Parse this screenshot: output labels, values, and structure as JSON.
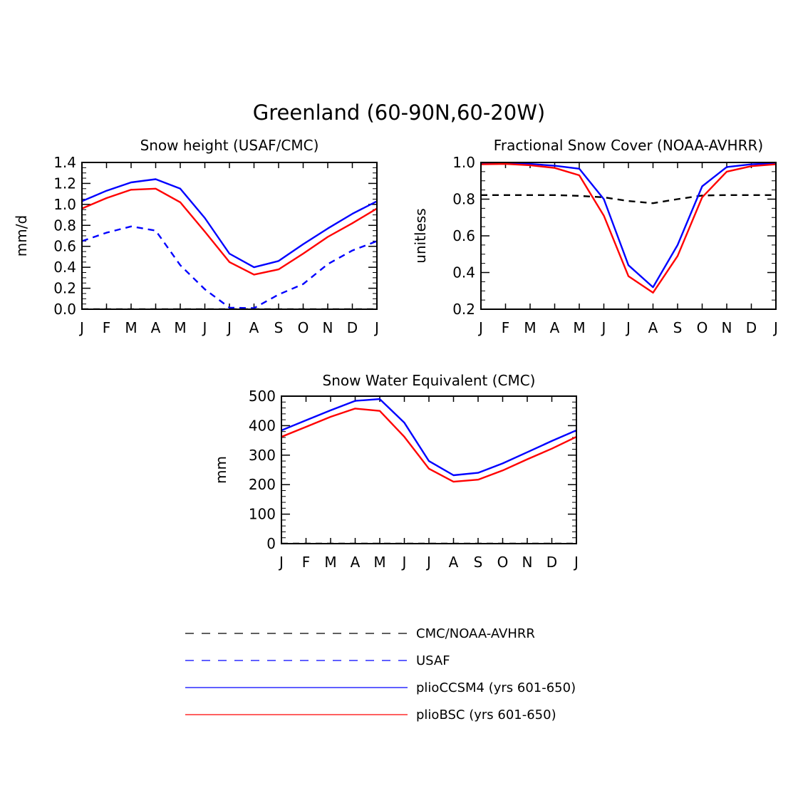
{
  "figure": {
    "title": "Greenland (60-90N,60-20W)"
  },
  "legend": {
    "entries": [
      {
        "key": "cmc_noaa",
        "label": "CMC/NOAA-AVHRR",
        "color": "#000000",
        "dash": true
      },
      {
        "key": "usaf",
        "label": "USAF",
        "color": "#0000ff",
        "dash": true
      },
      {
        "key": "ccsm4",
        "label": "plioCCSM4 (yrs 601-650)",
        "color": "#0000ff",
        "dash": false
      },
      {
        "key": "bsc",
        "label": "plioBSC (yrs 601-650)",
        "color": "#ff0000",
        "dash": false
      }
    ]
  },
  "chart_data": [
    {
      "type": "line",
      "title": "Snow height (USAF/CMC)",
      "xlabel": "",
      "ylabel": "mm/d",
      "categories": [
        "J",
        "F",
        "M",
        "A",
        "M",
        "J",
        "J",
        "A",
        "S",
        "O",
        "N",
        "D",
        "J"
      ],
      "ylim": [
        0,
        1.4
      ],
      "yticks": [
        "0.0",
        "0.2",
        "0.4",
        "0.6",
        "0.8",
        "1.0",
        "1.2",
        "1.4"
      ],
      "series": [
        {
          "name": "CMC/NOAA-AVHRR",
          "color": "#000000",
          "dash": true,
          "values": [
            0,
            0,
            0,
            0,
            0,
            0,
            0,
            0,
            0,
            0,
            0,
            0,
            0
          ]
        },
        {
          "name": "USAF",
          "color": "#0000ff",
          "dash": true,
          "values": [
            0.65,
            0.73,
            0.79,
            0.75,
            0.42,
            0.19,
            0.015,
            0.01,
            0.14,
            0.24,
            0.43,
            0.56,
            0.65
          ]
        },
        {
          "name": "plioCCSM4 (yrs 601-650)",
          "color": "#0000ff",
          "dash": false,
          "values": [
            1.03,
            1.13,
            1.21,
            1.24,
            1.15,
            0.87,
            0.53,
            0.4,
            0.46,
            0.62,
            0.77,
            0.91,
            1.03
          ]
        },
        {
          "name": "plioBSC (yrs 601-650)",
          "color": "#ff0000",
          "dash": false,
          "values": [
            0.96,
            1.06,
            1.14,
            1.15,
            1.02,
            0.74,
            0.45,
            0.33,
            0.38,
            0.53,
            0.69,
            0.82,
            0.96
          ]
        }
      ]
    },
    {
      "type": "line",
      "title": "Fractional Snow Cover (NOAA-AVHRR)",
      "xlabel": "",
      "ylabel": "unitless",
      "categories": [
        "J",
        "F",
        "M",
        "A",
        "M",
        "J",
        "J",
        "A",
        "S",
        "O",
        "N",
        "D",
        "J"
      ],
      "ylim": [
        0.2,
        1.0
      ],
      "yticks": [
        "0.2",
        "0.4",
        "0.6",
        "0.8",
        "1.0"
      ],
      "series": [
        {
          "name": "CMC/NOAA-AVHRR",
          "color": "#000000",
          "dash": true,
          "values": [
            0.822,
            0.822,
            0.822,
            0.822,
            0.818,
            0.81,
            0.79,
            0.778,
            0.8,
            0.82,
            0.822,
            0.822,
            0.822
          ]
        },
        {
          "name": "plioCCSM4 (yrs 601-650)",
          "color": "#0000ff",
          "dash": false,
          "values": [
            0.995,
            0.996,
            0.992,
            0.982,
            0.966,
            0.8,
            0.44,
            0.32,
            0.55,
            0.87,
            0.975,
            0.99,
            0.995
          ]
        },
        {
          "name": "plioBSC (yrs 601-650)",
          "color": "#ff0000",
          "dash": false,
          "values": [
            0.99,
            0.992,
            0.985,
            0.97,
            0.93,
            0.71,
            0.38,
            0.29,
            0.49,
            0.81,
            0.95,
            0.98,
            0.99
          ]
        }
      ]
    },
    {
      "type": "line",
      "title": "Snow Water Equivalent (CMC)",
      "xlabel": "",
      "ylabel": "mm",
      "categories": [
        "J",
        "F",
        "M",
        "A",
        "M",
        "J",
        "J",
        "A",
        "S",
        "O",
        "N",
        "D",
        "J"
      ],
      "ylim": [
        0,
        500
      ],
      "yticks": [
        "0",
        "100",
        "200",
        "300",
        "400",
        "500"
      ],
      "series": [
        {
          "name": "CMC/NOAA-AVHRR",
          "color": "#000000",
          "dash": true,
          "values": [
            0,
            0,
            0,
            0,
            0,
            0,
            0,
            0,
            0,
            0,
            0,
            0,
            0
          ]
        },
        {
          "name": "plioCCSM4 (yrs 601-650)",
          "color": "#0000ff",
          "dash": false,
          "values": [
            384,
            418,
            452,
            484,
            490,
            410,
            280,
            232,
            240,
            272,
            310,
            348,
            384
          ]
        },
        {
          "name": "plioBSC (yrs 601-650)",
          "color": "#ff0000",
          "dash": false,
          "values": [
            362,
            396,
            430,
            458,
            450,
            362,
            254,
            210,
            217,
            248,
            286,
            322,
            362
          ]
        }
      ]
    }
  ]
}
